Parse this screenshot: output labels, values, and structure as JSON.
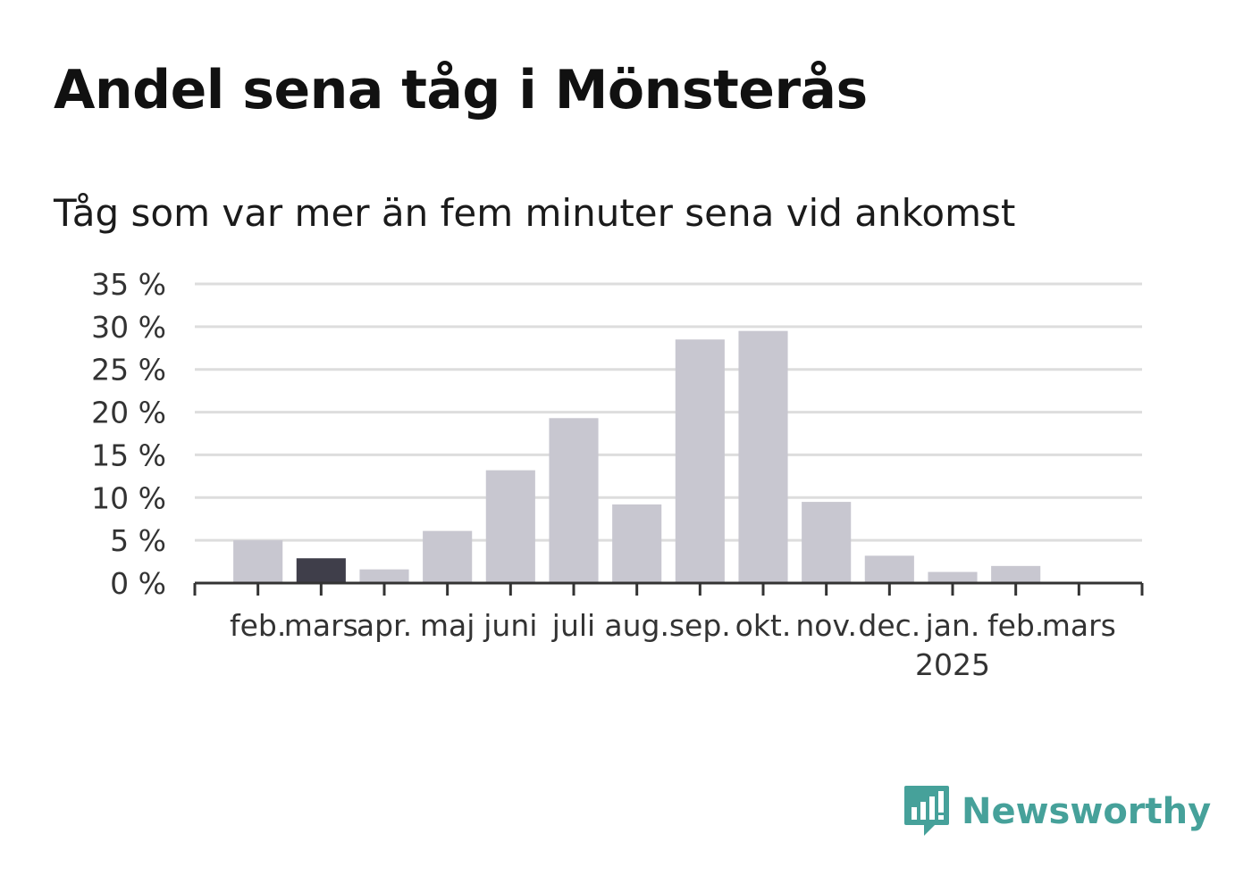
{
  "title": "Andel sena tåg i Mönsterås",
  "subtitle": "Tåg som var mer än fem minuter sena vid ankomst",
  "brand": {
    "name": "Newsworthy",
    "color": "#46a19a",
    "icon": "newsworthy-logo-icon"
  },
  "colors": {
    "bar": "#c8c7d0",
    "highlight": "#3f3e4a",
    "grid": "#dddddd",
    "axis": "#333333"
  },
  "chart_data": {
    "type": "bar",
    "categories": [
      "feb.",
      "mars",
      "apr.",
      "maj",
      "juni",
      "juli",
      "aug.",
      "sep.",
      "okt.",
      "nov.",
      "dec.",
      "jan.",
      "feb.",
      "mars"
    ],
    "year_labels": [
      "",
      "",
      "",
      "",
      "",
      "",
      "",
      "",
      "",
      "",
      "",
      "2025",
      "",
      ""
    ],
    "values": [
      5.0,
      2.9,
      1.6,
      6.1,
      13.2,
      19.3,
      9.2,
      28.5,
      29.5,
      9.5,
      3.2,
      1.3,
      2.0,
      0
    ],
    "highlight_index": 1,
    "y_ticks": [
      "0 %",
      "5 %",
      "10 %",
      "15 %",
      "20 %",
      "25 %",
      "30 %",
      "35 %"
    ],
    "ylim": [
      0,
      35
    ],
    "grid": true,
    "xlabel": "",
    "ylabel": ""
  }
}
